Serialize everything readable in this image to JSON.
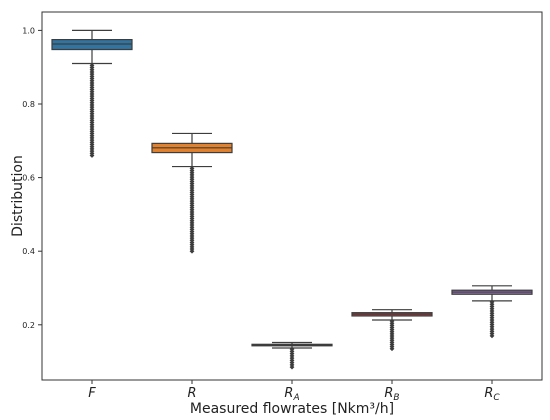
{
  "chart_data": {
    "type": "box",
    "xlabel": "Measured flowrates [Nkm³/h]",
    "ylabel": "Distribution",
    "ylim": [
      0.05,
      1.05
    ],
    "yticks": [
      0.2,
      0.4,
      0.6,
      0.8,
      1.0
    ],
    "ytick_labels": [
      "0.2",
      "0.4",
      "0.6",
      "0.8",
      "1.0"
    ],
    "grid": false,
    "categories": [
      {
        "base": "F",
        "sub": ""
      },
      {
        "base": "R",
        "sub": ""
      },
      {
        "base": "R",
        "sub": "A"
      },
      {
        "base": "R",
        "sub": "B"
      },
      {
        "base": "R",
        "sub": "C"
      }
    ],
    "boxes": [
      {
        "whisker_low": 0.91,
        "q1": 0.948,
        "median": 0.963,
        "q3": 0.975,
        "whisker_high": 1.0,
        "outliers_from": 0.66,
        "outliers_to": 0.905,
        "color": "#3274a1"
      },
      {
        "whisker_low": 0.63,
        "q1": 0.668,
        "median": 0.681,
        "q3": 0.693,
        "whisker_high": 0.72,
        "outliers_from": 0.4,
        "outliers_to": 0.625,
        "color": "#e1812c"
      },
      {
        "whisker_low": 0.137,
        "q1": 0.143,
        "median": 0.145,
        "q3": 0.147,
        "whisker_high": 0.152,
        "outliers_from": 0.085,
        "outliers_to": 0.134,
        "color": "#3a923a"
      },
      {
        "whisker_low": 0.213,
        "q1": 0.224,
        "median": 0.229,
        "q3": 0.233,
        "whisker_high": 0.241,
        "outliers_from": 0.135,
        "outliers_to": 0.21,
        "color": "#c03d3e"
      },
      {
        "whisker_low": 0.265,
        "q1": 0.283,
        "median": 0.289,
        "q3": 0.294,
        "whisker_high": 0.306,
        "outliers_from": 0.17,
        "outliers_to": 0.262,
        "color": "#9372b2"
      }
    ]
  }
}
